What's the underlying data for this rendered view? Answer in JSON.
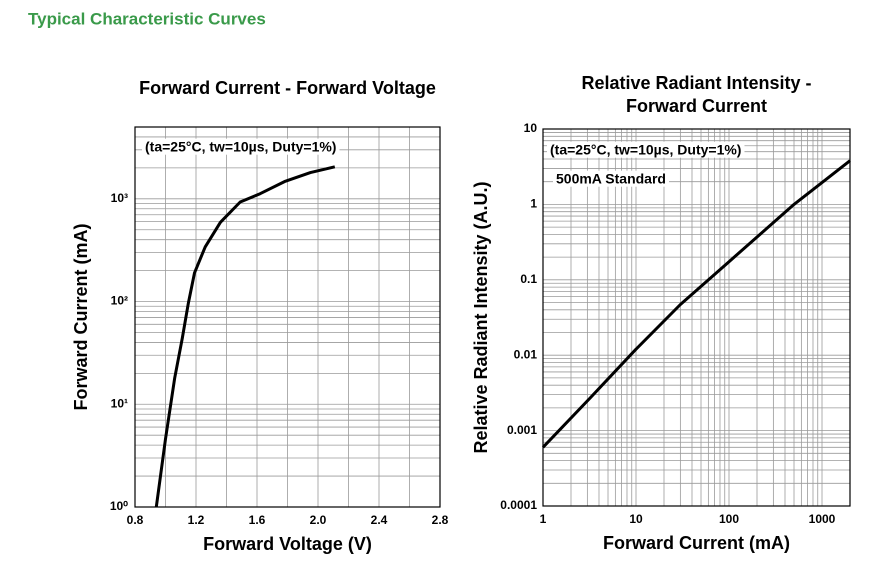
{
  "header": {
    "title": "Typical Characteristic Curves"
  },
  "chart_data": [
    {
      "type": "line",
      "title": "Forward Current - Forward Voltage",
      "x_label": "Forward Voltage (V)",
      "y_label": "Forward Current (mA)",
      "annotations": [
        "(ta=25°C, tw=10µs, Duty=1%)"
      ],
      "x": [
        0.94,
        1.0,
        1.06,
        1.11,
        1.15,
        1.19,
        1.26,
        1.36,
        1.49,
        1.62,
        1.78,
        1.95,
        2.11
      ],
      "values": [
        1,
        4.6,
        18,
        44,
        97,
        190,
        340,
        590,
        930,
        1120,
        1470,
        1800,
        2050
      ],
      "color": "#000000",
      "xlim": [
        0.8,
        2.8
      ],
      "xticks": [
        0.8,
        1.2,
        1.6,
        {
          "value": 2,
          "label": "2.0"
        },
        2.4,
        2.8
      ],
      "ylim": [
        1,
        5000
      ],
      "ylog": true,
      "yticks": [
        {
          "value": 1,
          "label": "10⁰"
        },
        {
          "value": 10,
          "label": "10¹"
        },
        {
          "value": 100,
          "label": "10²"
        },
        {
          "value": 1000,
          "label": "10³"
        }
      ],
      "grid": true
    },
    {
      "type": "line",
      "title": [
        "Relative Radiant Intensity -",
        "Forward Current"
      ],
      "x_label": "Forward Current (mA)",
      "y_label": "Relative Radiant Intensity (A.U.)",
      "annotations": [
        "(ta=25°C, tw=10µs, Duty=1%)",
        "500mA Standard"
      ],
      "x": [
        1,
        3.2,
        10,
        30,
        100,
        500,
        2000
      ],
      "values": [
        0.0006,
        0.0027,
        0.012,
        0.047,
        0.174,
        1,
        3.8
      ],
      "color": "#000000",
      "xlim": [
        1,
        2000
      ],
      "xlog": true,
      "xticks": [
        1,
        10,
        100,
        1000
      ],
      "ylim": [
        0.0001,
        10
      ],
      "ylog": true,
      "yticks": [
        0.0001,
        0.001,
        0.01,
        0.1,
        1,
        10
      ],
      "grid": true
    }
  ]
}
